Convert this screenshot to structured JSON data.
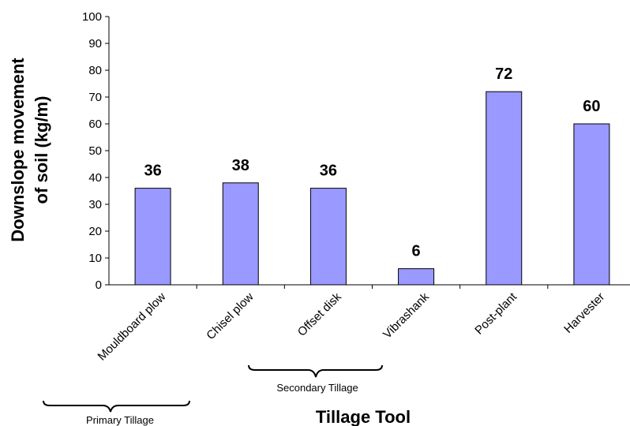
{
  "chart_data": {
    "type": "bar",
    "categories": [
      "Mouldboard plow",
      "Chisel plow",
      "Offset disk",
      "Vibrashank",
      "Post-plant",
      "Harvester"
    ],
    "values": [
      36,
      38,
      36,
      6,
      72,
      60
    ],
    "data_labels": [
      "36",
      "38",
      "36",
      "6",
      "72",
      "60"
    ],
    "title": "",
    "xlabel": "Tillage Tool",
    "ylabel": [
      "Downslope movement",
      "of soil (kg/m)"
    ],
    "ylim": [
      0,
      100
    ],
    "yticks": [
      "0",
      "10",
      "20",
      "30",
      "40",
      "50",
      "60",
      "70",
      "80",
      "90",
      "100"
    ],
    "grid": false,
    "bar_color": "#9999ff",
    "bar_edge_color": "#000000",
    "groups": [
      {
        "label": "Primary Tillage"
      },
      {
        "label": "Secondary Tillage"
      }
    ]
  }
}
